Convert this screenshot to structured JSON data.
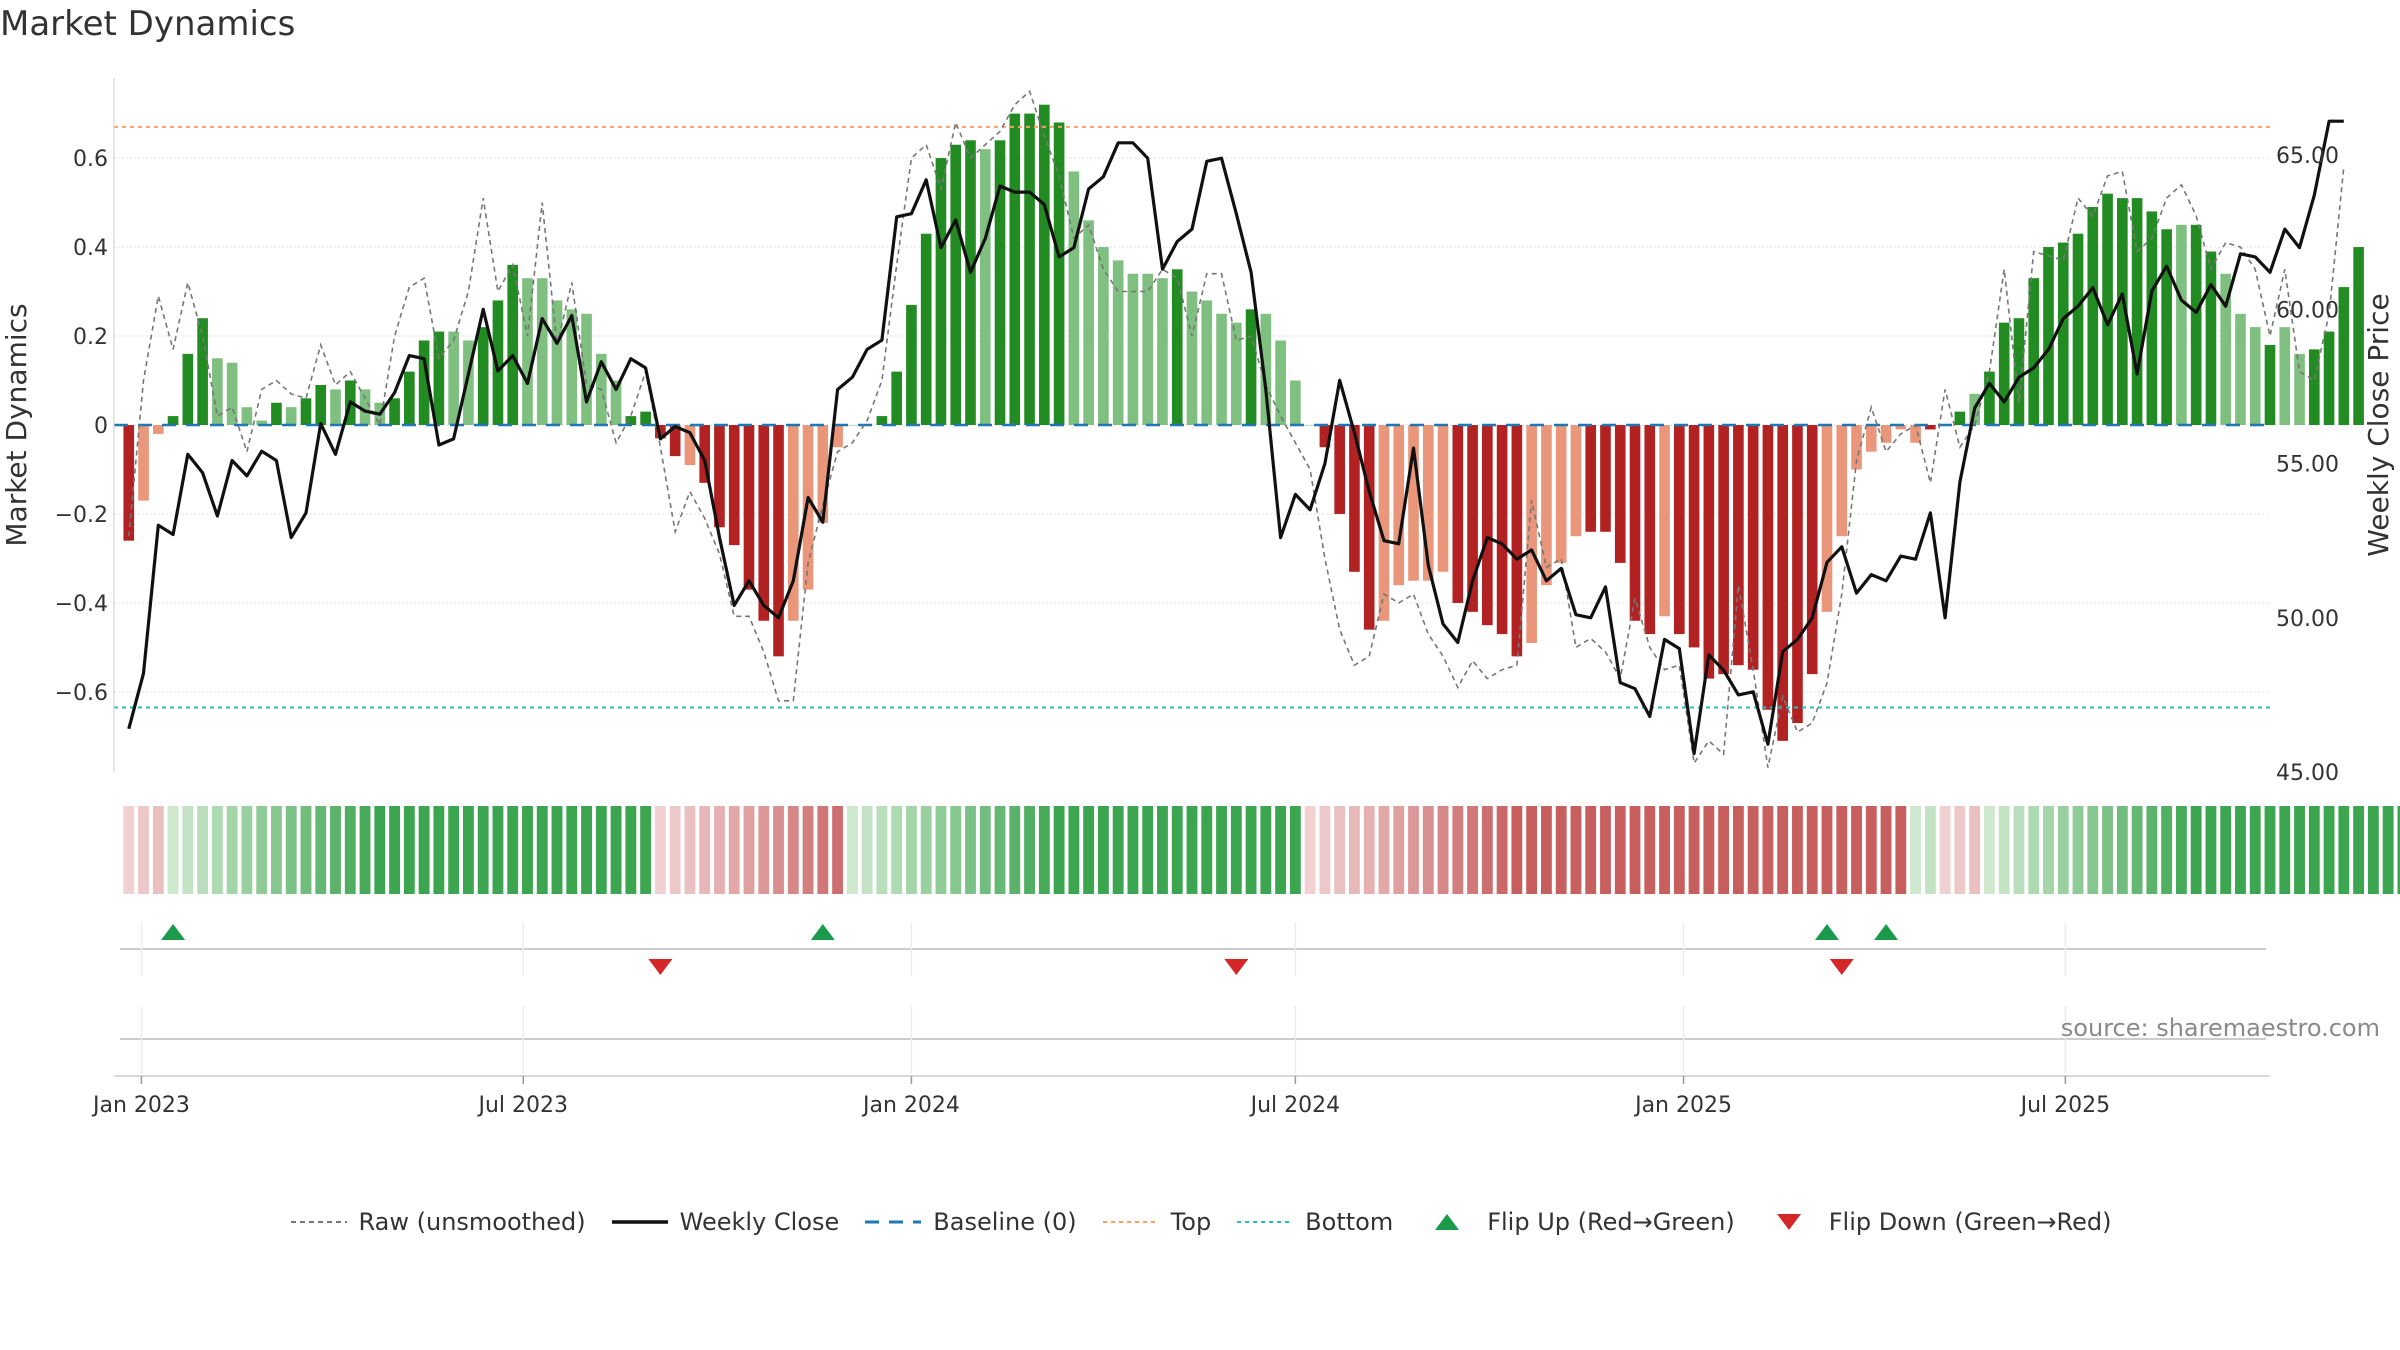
{
  "title": "Market Dynamics",
  "watermark": "source: sharemaestro.com",
  "colors": {
    "strong_green": "#228b22",
    "light_green": "#7fbf7f",
    "strong_red": "#b22222",
    "light_red": "#e9967a",
    "weekly_close": "#111111",
    "raw": "#777777",
    "baseline": "#1f77b4",
    "top": "#f4a460",
    "bottom": "#20c0c0",
    "flip_up": "#1a9a4a",
    "flip_down": "#d62728"
  },
  "legend": [
    {
      "label": "Raw (unsmoothed)",
      "icon": "dotted-line"
    },
    {
      "label": "Weekly Close",
      "icon": "solid-line"
    },
    {
      "label": "Baseline (0)",
      "icon": "dashed-line"
    },
    {
      "label": "Top",
      "icon": "dotted-line"
    },
    {
      "label": "Bottom",
      "icon": "dotted-line"
    },
    {
      "label": "Flip Up (Red→Green)",
      "icon": "triangle-up-icon"
    },
    {
      "label": "Flip Down (Green→Red)",
      "icon": "triangle-down-icon"
    }
  ],
  "chart_data": {
    "type": "bar",
    "x_axis": {
      "type": "date",
      "range": [
        "2022-12-19",
        "2025-10-06"
      ],
      "ticks": [
        {
          "date": "2023-01-01",
          "label": "Jan 2023"
        },
        {
          "date": "2023-07-01",
          "label": "Jul 2023"
        },
        {
          "date": "2024-01-01",
          "label": "Jan 2024"
        },
        {
          "date": "2024-07-01",
          "label": "Jul 2024"
        },
        {
          "date": "2025-01-01",
          "label": "Jan 2025"
        },
        {
          "date": "2025-07-01",
          "label": "Jul 2025"
        }
      ]
    },
    "y_left": {
      "label": "Market Dynamics",
      "range": [
        -0.78,
        0.78
      ],
      "ticks": [
        {
          "value": -0.6,
          "label": "−0.6"
        },
        {
          "value": -0.4,
          "label": "−0.4"
        },
        {
          "value": -0.2,
          "label": "−0.2"
        },
        {
          "value": 0,
          "label": "0"
        },
        {
          "value": 0.2,
          "label": "0.2"
        },
        {
          "value": 0.4,
          "label": "0.4"
        },
        {
          "value": 0.6,
          "label": "0.6"
        }
      ]
    },
    "y_right": {
      "label": "Weekly Close Price",
      "range": [
        45,
        67.5
      ],
      "ticks": [
        {
          "value": 45,
          "label": "45.00"
        },
        {
          "value": 50,
          "label": "50.00"
        },
        {
          "value": 55,
          "label": "55.00"
        },
        {
          "value": 60,
          "label": "60.00"
        },
        {
          "value": 65,
          "label": "65.00"
        }
      ]
    },
    "top_level": 0.67,
    "bottom_level": -0.635,
    "baseline": 0,
    "start_date": "2022-12-26",
    "week_interval_days": 7,
    "dynamics": [
      -0.26,
      -0.17,
      -0.02,
      0.02,
      0.16,
      0.24,
      0.15,
      0.14,
      0.04,
      0.01,
      0.05,
      0.04,
      0.06,
      0.09,
      0.08,
      0.1,
      0.08,
      0.05,
      0.06,
      0.12,
      0.19,
      0.21,
      0.21,
      0.19,
      0.22,
      0.28,
      0.36,
      0.33,
      0.33,
      0.28,
      0.26,
      0.25,
      0.16,
      0.1,
      0.02,
      0.03,
      -0.03,
      -0.07,
      -0.09,
      -0.13,
      -0.23,
      -0.27,
      -0.37,
      -0.44,
      -0.52,
      -0.44,
      -0.37,
      -0.22,
      -0.05,
      0.0,
      0.0,
      0.02,
      0.12,
      0.27,
      0.43,
      0.6,
      0.63,
      0.64,
      0.62,
      0.64,
      0.7,
      0.7,
      0.72,
      0.68,
      0.57,
      0.46,
      0.4,
      0.37,
      0.34,
      0.34,
      0.33,
      0.35,
      0.3,
      0.28,
      0.25,
      0.23,
      0.26,
      0.25,
      0.19,
      0.1,
      0.0,
      -0.05,
      -0.2,
      -0.33,
      -0.46,
      -0.44,
      -0.36,
      -0.35,
      -0.35,
      -0.33,
      -0.4,
      -0.42,
      -0.45,
      -0.47,
      -0.52,
      -0.49,
      -0.36,
      -0.31,
      -0.25,
      -0.24,
      -0.24,
      -0.31,
      -0.44,
      -0.47,
      -0.43,
      -0.47,
      -0.5,
      -0.57,
      -0.56,
      -0.54,
      -0.55,
      -0.64,
      -0.71,
      -0.67,
      -0.56,
      -0.42,
      -0.25,
      -0.1,
      -0.06,
      -0.04,
      -0.01,
      -0.04,
      -0.01,
      0.0,
      0.03,
      0.07,
      0.12,
      0.23,
      0.24,
      0.33,
      0.4,
      0.41,
      0.43,
      0.49,
      0.52,
      0.51,
      0.51,
      0.48,
      0.44,
      0.45,
      0.45,
      0.39,
      0.34,
      0.25,
      0.22,
      0.18,
      0.22,
      0.16,
      0.17,
      0.21,
      0.31,
      0.4
    ],
    "bar_strength": [
      1,
      0,
      0,
      1,
      1,
      1,
      0,
      0,
      0,
      0,
      1,
      0,
      1,
      1,
      0,
      1,
      0,
      0,
      1,
      1,
      1,
      1,
      0,
      0,
      1,
      1,
      1,
      0,
      0,
      0,
      0,
      0,
      0,
      0,
      1,
      1,
      1,
      1,
      0,
      1,
      1,
      1,
      1,
      1,
      1,
      0,
      0,
      0,
      0,
      0,
      0,
      1,
      1,
      1,
      1,
      1,
      1,
      1,
      0,
      1,
      1,
      1,
      1,
      1,
      0,
      0,
      0,
      0,
      0,
      0,
      0,
      1,
      0,
      0,
      0,
      0,
      1,
      0,
      0,
      0,
      0,
      1,
      1,
      1,
      1,
      0,
      0,
      0,
      0,
      0,
      1,
      1,
      1,
      1,
      1,
      0,
      0,
      0,
      0,
      1,
      1,
      1,
      1,
      1,
      0,
      1,
      1,
      1,
      1,
      1,
      1,
      1,
      1,
      1,
      1,
      0,
      0,
      0,
      0,
      0,
      0,
      0,
      1,
      0,
      1,
      0,
      1,
      1,
      1,
      1,
      1,
      1,
      1,
      1,
      1,
      1,
      1,
      1,
      1,
      0,
      1,
      1,
      0,
      0,
      0,
      1,
      0,
      0,
      1,
      1,
      1,
      1
    ],
    "weekly_close": [
      46.4,
      48.2,
      53.0,
      52.7,
      55.3,
      54.7,
      53.3,
      55.1,
      54.6,
      55.4,
      55.1,
      52.6,
      53.4,
      56.3,
      55.3,
      57.0,
      56.7,
      56.6,
      57.3,
      58.5,
      58.4,
      55.6,
      55.8,
      57.9,
      60.0,
      58.0,
      58.5,
      57.6,
      59.7,
      58.9,
      59.8,
      57.0,
      58.3,
      57.4,
      58.4,
      58.1,
      55.8,
      56.2,
      56.0,
      55.1,
      52.6,
      50.4,
      51.2,
      50.4,
      50.0,
      51.2,
      53.9,
      53.1,
      57.4,
      57.8,
      58.7,
      59.0,
      63.0,
      63.1,
      64.2,
      62.0,
      62.9,
      61.2,
      62.3,
      64.0,
      63.8,
      63.8,
      63.4,
      61.7,
      62.0,
      63.9,
      64.3,
      65.4,
      65.4,
      64.9,
      61.3,
      62.2,
      62.6,
      64.8,
      64.9,
      63.1,
      61.2,
      57.4,
      52.6,
      54.0,
      53.5,
      55.0,
      57.7,
      56.0,
      54.1,
      52.5,
      52.4,
      55.5,
      51.7,
      49.8,
      49.2,
      51.2,
      52.6,
      52.4,
      51.9,
      52.2,
      51.2,
      51.6,
      50.1,
      50.0,
      51.0,
      47.9,
      47.7,
      46.8,
      49.3,
      49.0,
      45.6,
      48.8,
      48.3,
      47.5,
      47.6,
      45.9,
      48.9,
      49.3,
      50.0,
      51.8,
      52.3,
      50.8,
      51.4,
      51.2,
      52.0,
      51.9,
      53.4,
      50.0,
      54.4,
      56.8,
      57.6,
      57.0,
      57.8,
      58.1,
      58.7,
      59.7,
      60.1,
      60.7,
      59.5,
      60.5,
      57.9,
      60.6,
      61.4,
      60.3,
      59.9,
      60.8,
      60.1,
      61.8,
      61.7,
      61.2,
      62.6,
      62.0,
      63.7,
      66.1,
      66.1
    ],
    "raw_dynamics": [
      -0.25,
      0.1,
      0.29,
      0.17,
      0.32,
      0.2,
      0.02,
      0.04,
      -0.06,
      0.08,
      0.1,
      0.07,
      0.06,
      0.18,
      0.09,
      0.12,
      0.06,
      0.0,
      0.2,
      0.31,
      0.33,
      0.15,
      0.19,
      0.3,
      0.51,
      0.3,
      0.36,
      0.2,
      0.5,
      0.18,
      0.32,
      0.09,
      0.08,
      -0.04,
      0.02,
      0.12,
      -0.05,
      -0.24,
      -0.15,
      -0.21,
      -0.29,
      -0.43,
      -0.43,
      -0.51,
      -0.62,
      -0.62,
      -0.31,
      -0.18,
      -0.06,
      -0.04,
      0.01,
      0.1,
      0.36,
      0.6,
      0.63,
      0.53,
      0.68,
      0.6,
      0.63,
      0.66,
      0.72,
      0.75,
      0.65,
      0.56,
      0.42,
      0.45,
      0.35,
      0.3,
      0.3,
      0.3,
      0.35,
      0.33,
      0.2,
      0.34,
      0.34,
      0.19,
      0.2,
      0.09,
      0.02,
      -0.04,
      -0.1,
      -0.3,
      -0.46,
      -0.54,
      -0.52,
      -0.38,
      -0.4,
      -0.38,
      -0.47,
      -0.52,
      -0.59,
      -0.53,
      -0.57,
      -0.55,
      -0.54,
      -0.17,
      -0.32,
      -0.3,
      -0.5,
      -0.48,
      -0.51,
      -0.57,
      -0.39,
      -0.5,
      -0.55,
      -0.54,
      -0.76,
      -0.71,
      -0.74,
      -0.36,
      -0.55,
      -0.77,
      -0.61,
      -0.69,
      -0.67,
      -0.58,
      -0.38,
      -0.08,
      0.04,
      -0.06,
      -0.02,
      0.0,
      -0.13,
      0.08,
      -0.05,
      0.0,
      0.12,
      0.35,
      0.05,
      0.39,
      0.38,
      0.37,
      0.51,
      0.47,
      0.56,
      0.57,
      0.39,
      0.42,
      0.51,
      0.54,
      0.47,
      0.35,
      0.41,
      0.4,
      0.35,
      0.2,
      0.35,
      0.12,
      0.1,
      0.25,
      0.58
    ],
    "regime_strip": [
      -1,
      -1,
      -1,
      1,
      1,
      1,
      1,
      1,
      1,
      1,
      1,
      1,
      1,
      1,
      1,
      1,
      1,
      1,
      1,
      1,
      1,
      1,
      1,
      1,
      1,
      1,
      1,
      1,
      1,
      1,
      1,
      1,
      1,
      1,
      1,
      1,
      -1,
      -1,
      -1,
      -1,
      -1,
      -1,
      -1,
      -1,
      -1,
      -1,
      -1,
      -1,
      -1,
      1,
      1,
      1,
      1,
      1,
      1,
      1,
      1,
      1,
      1,
      1,
      1,
      1,
      1,
      1,
      1,
      1,
      1,
      1,
      1,
      1,
      1,
      1,
      1,
      1,
      1,
      1,
      1,
      1,
      1,
      1,
      -1,
      -1,
      -1,
      -1,
      -1,
      -1,
      -1,
      -1,
      -1,
      -1,
      -1,
      -1,
      -1,
      -1,
      -1,
      -1,
      -1,
      -1,
      -1,
      -1,
      -1,
      -1,
      -1,
      -1,
      -1,
      -1,
      -1,
      -1,
      -1,
      -1,
      -1,
      -1,
      -1,
      -1,
      -1,
      -1,
      -1,
      -1,
      -1,
      -1,
      -1,
      1,
      1,
      -1,
      -1,
      -1,
      1,
      1,
      1,
      1,
      1,
      1,
      1,
      1,
      1,
      1,
      1,
      1,
      1,
      1,
      1,
      1,
      1,
      1,
      1,
      1,
      1,
      1,
      1,
      1,
      1,
      1,
      1,
      1,
      1,
      1,
      1
    ],
    "flip_up_dates": [
      "2023-01-16",
      "2023-11-20",
      "2025-03-10",
      "2025-04-07"
    ],
    "flip_down_dates": [
      "2023-09-04",
      "2024-06-03",
      "2025-03-17"
    ]
  }
}
